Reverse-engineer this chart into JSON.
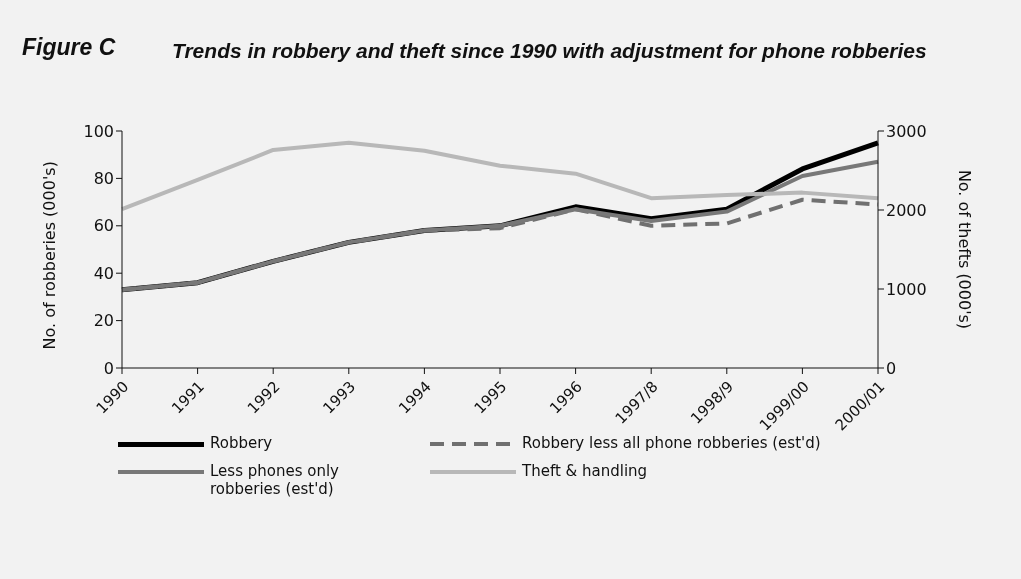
{
  "chart_data": {
    "type": "line",
    "title": "Trends in robbery and theft since 1990 with adjustment for phone robberies",
    "annotations": [
      "Figure C"
    ],
    "categories": [
      "1990",
      "1991",
      "1992",
      "1993",
      "1994",
      "1995",
      "1996",
      "1997/8",
      "1998/9",
      "1999/00",
      "2000/01"
    ],
    "ylabel": "No. of robberies (000's)",
    "y2label": "No. of thefts (000's)",
    "ylim": [
      0,
      100
    ],
    "yticks": [
      0,
      20,
      40,
      60,
      80,
      100
    ],
    "y2lim": [
      0,
      3000
    ],
    "y2ticks": [
      0,
      1000,
      2000,
      3000
    ],
    "grid": false,
    "legend": "bottom",
    "marker": "none",
    "series": [
      {
        "name": "Robbery",
        "color": "#000000",
        "line_style": "solid",
        "values": [
          33,
          36,
          45,
          53,
          58,
          60,
          68,
          63,
          67,
          84,
          95
        ]
      },
      {
        "name": "Robbery less all phone robberies (est'd)",
        "color": "#707070",
        "line_style": "dashed",
        "values": [
          33,
          36,
          45,
          53,
          58,
          59,
          67,
          60,
          61,
          71,
          69
        ]
      },
      {
        "name": "Less phones only robberies (est'd)",
        "color": "#787878",
        "line_style": "solid",
        "values": [
          33,
          36,
          45,
          53,
          58,
          60,
          67,
          62,
          66,
          81,
          87
        ]
      },
      {
        "name": "Theft & handling",
        "color": "#b8b8b8",
        "line_style": "solid",
        "axis": "y2",
        "values": [
          2010,
          2380,
          2760,
          2850,
          2750,
          2560,
          2460,
          2150,
          2190,
          2220,
          2150
        ]
      }
    ]
  }
}
